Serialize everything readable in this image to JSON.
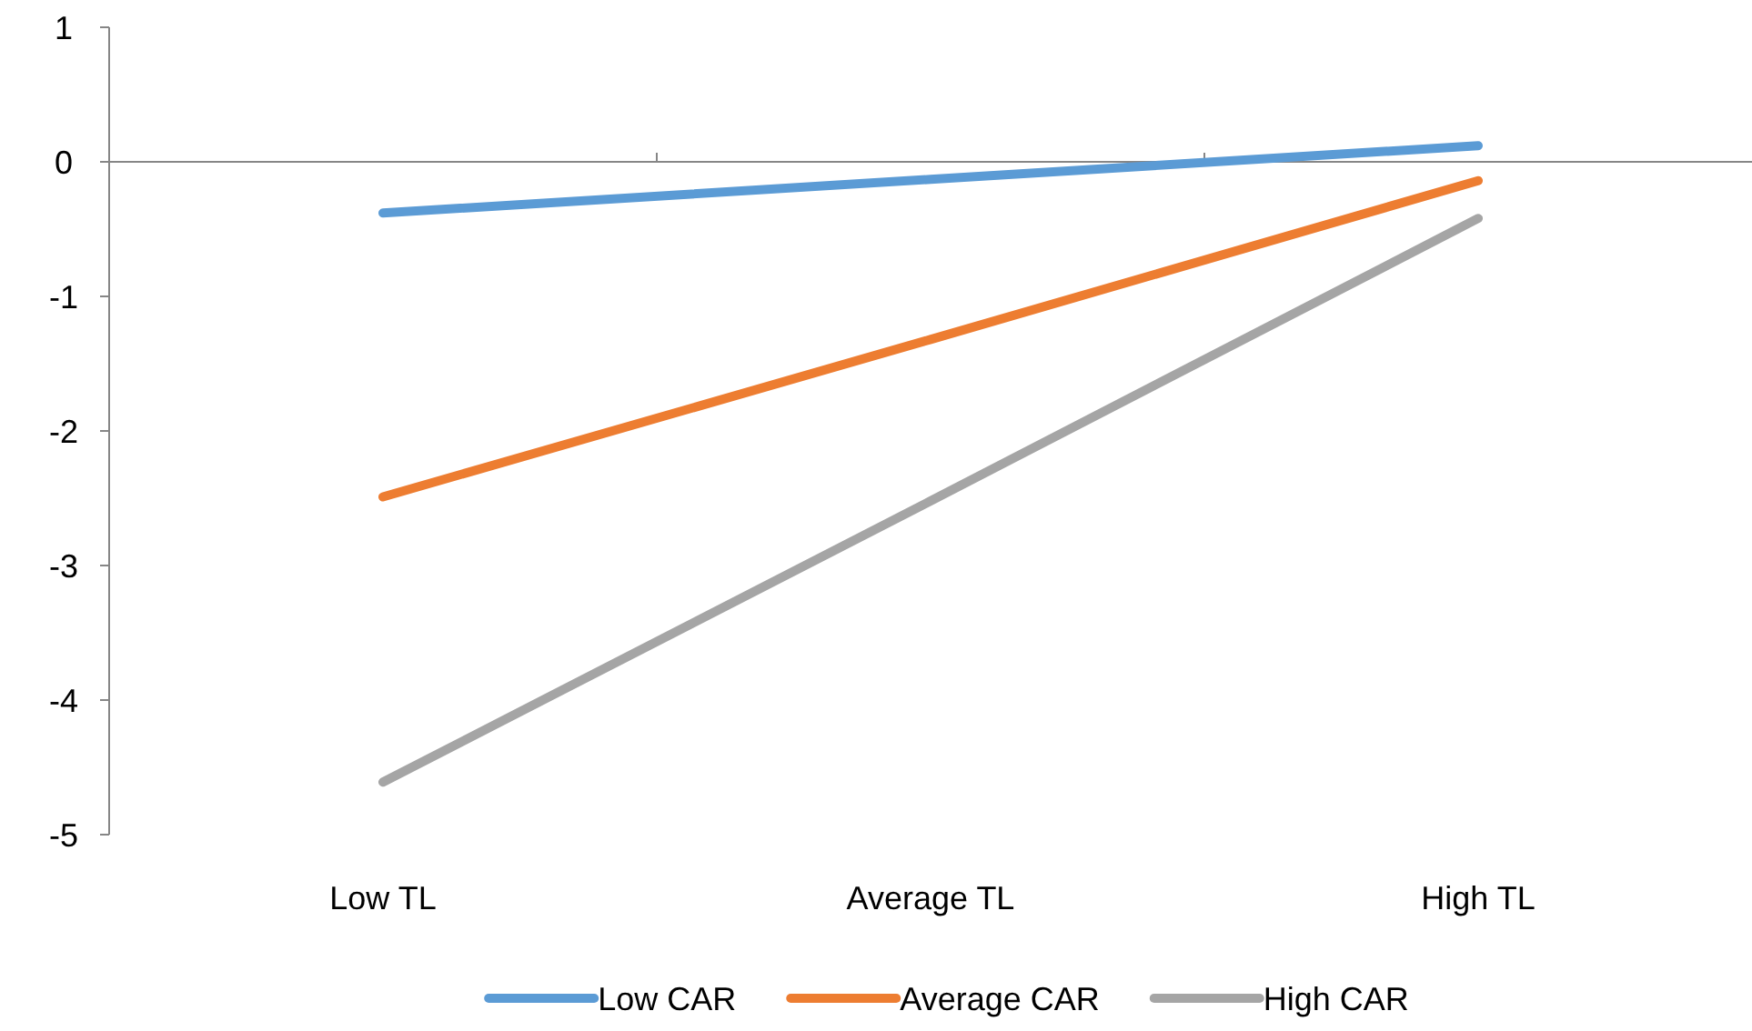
{
  "chart_data": {
    "type": "line",
    "categories": [
      "Low TL",
      "Average TL",
      "High TL"
    ],
    "series": [
      {
        "name": "Low CAR",
        "color": "#5b9bd5",
        "values": [
          -0.38,
          -0.13,
          0.12
        ]
      },
      {
        "name": "Average CAR",
        "color": "#ed7d31",
        "values": [
          -2.49,
          -1.32,
          -0.14
        ]
      },
      {
        "name": "High CAR",
        "color": "#a5a5a5",
        "values": [
          -4.61,
          -2.52,
          -0.42
        ]
      }
    ],
    "ylim": [
      -5,
      1
    ],
    "yticks": [
      -5,
      -4,
      -3,
      -2,
      -1,
      0,
      1
    ],
    "legend": "bottom",
    "marker": "none",
    "line_style": "solid"
  }
}
